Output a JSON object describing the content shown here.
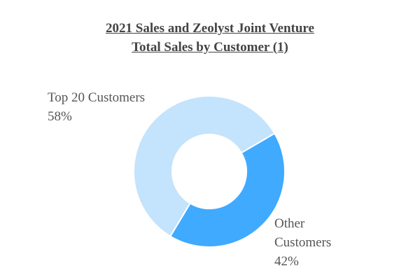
{
  "chart_data": {
    "type": "donut",
    "title": "2021 Sales and Zeolyst Joint Venture",
    "subtitle": "Total Sales by Customer (1)",
    "categories": [
      "Top 20 Customers",
      "Other Customers"
    ],
    "values": [
      58,
      42
    ],
    "value_labels": [
      "58%",
      "42%"
    ],
    "colors": [
      "#c4e3fc",
      "#40aaff"
    ]
  }
}
